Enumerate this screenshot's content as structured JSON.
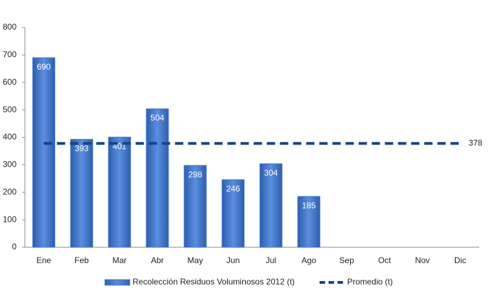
{
  "chart_data": {
    "type": "bar",
    "categories": [
      "Ene",
      "Feb",
      "Mar",
      "Abr",
      "May",
      "Jun",
      "Jul",
      "Ago",
      "Sep",
      "Oct",
      "Nov",
      "Dic"
    ],
    "series": [
      {
        "name": "Recolección Residuos Voluminosos 2012 (t)",
        "type": "bar",
        "color": "#3f72c6",
        "values": [
          690,
          393,
          401,
          504,
          298,
          246,
          304,
          185,
          null,
          null,
          null,
          null
        ]
      },
      {
        "name": "Promedio (t)",
        "type": "line",
        "dashed": true,
        "color": "#17457e",
        "values": [
          378,
          378,
          378,
          378,
          378,
          378,
          378,
          378,
          378,
          378,
          378,
          378
        ]
      }
    ],
    "ylim": [
      0,
      800
    ],
    "yticks": [
      0,
      100,
      200,
      300,
      400,
      500,
      600,
      700,
      800
    ],
    "grid": false,
    "legend": "bottom"
  }
}
